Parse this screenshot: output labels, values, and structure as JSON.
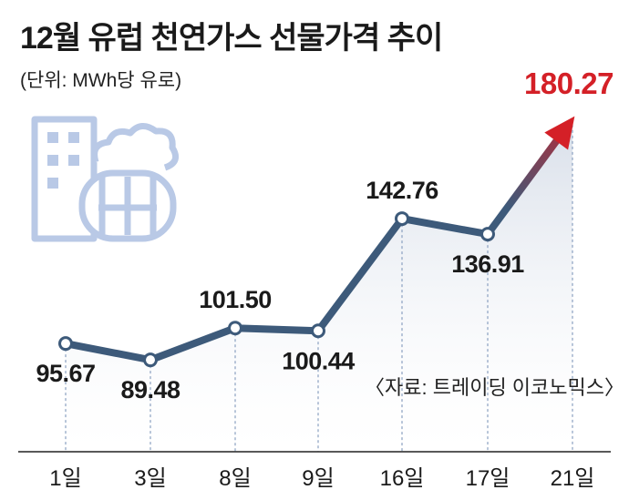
{
  "chart_data": {
    "type": "line",
    "title": "12월 유럽 천연가스 선물가격 추이",
    "unit_label": "(단위: MWh당 유로)",
    "source": "〈자료: 트레이딩 이코노믹스〉",
    "categories": [
      "1일",
      "3일",
      "8일",
      "9일",
      "16일",
      "17일",
      "21일"
    ],
    "values": [
      95.67,
      89.48,
      101.5,
      100.44,
      142.76,
      136.91,
      180.27
    ],
    "value_labels": [
      "95.67",
      "89.48",
      "101.50",
      "100.44",
      "142.76",
      "136.91",
      "180.27"
    ],
    "xlabel": "",
    "ylabel": "",
    "ylim": [
      60,
      195
    ],
    "highlight_last": true,
    "colors": {
      "line": "#3d5a7a",
      "highlight": "#d42027",
      "label": "#1a1a1a",
      "grid": "#8aa0c0",
      "area": "#dde3ec",
      "illustration": "#b9c9e6"
    }
  }
}
